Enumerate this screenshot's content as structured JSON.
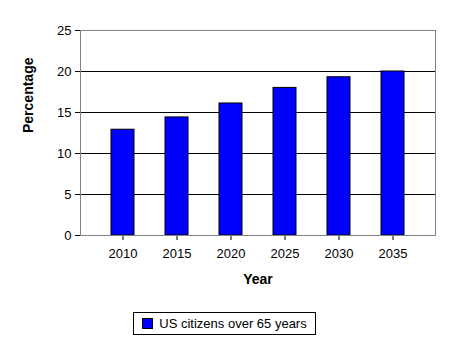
{
  "chart_data": {
    "type": "bar",
    "categories": [
      "2010",
      "2015",
      "2020",
      "2025",
      "2030",
      "2035"
    ],
    "series": [
      {
        "name": "US citizens over 65 years",
        "color": "#0000ff",
        "values": [
          12.9,
          14.4,
          16.1,
          18.0,
          19.3,
          20.0
        ]
      }
    ],
    "xlabel": "Year",
    "ylabel": "Percentage",
    "ylim": [
      0,
      25
    ],
    "yticks": [
      0,
      5,
      10,
      15,
      20,
      25
    ],
    "grid": true,
    "legend": "bottom"
  }
}
